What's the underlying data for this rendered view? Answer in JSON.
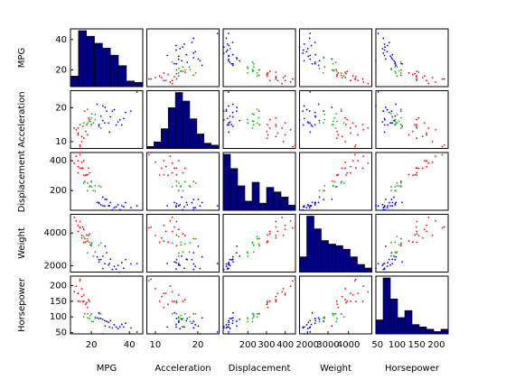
{
  "chart_data": {
    "type": "scatter-matrix",
    "variables": [
      "MPG",
      "Acceleration",
      "Displacement",
      "Weight",
      "Horsepower"
    ],
    "lims": [
      [
        9,
        47
      ],
      [
        8,
        25
      ],
      [
        68,
        455
      ],
      [
        1613,
        5140
      ],
      [
        46,
        230
      ]
    ],
    "xticks": [
      [
        20,
        40
      ],
      [
        10,
        20
      ],
      [
        200,
        300,
        400
      ],
      [
        2000,
        3000,
        4000
      ],
      [
        50,
        100,
        150,
        200
      ]
    ],
    "yticks": [
      [
        20,
        40
      ],
      [
        10,
        20
      ],
      [
        200,
        400
      ],
      [
        2000,
        4000
      ],
      [
        50,
        100,
        150,
        200
      ]
    ],
    "hist_color": "#000080",
    "histograms": [
      {
        "bins": [
          9,
          13.2,
          17.4,
          21.6,
          25.8,
          30,
          34.2,
          38.4,
          42.6,
          46.8
        ],
        "counts": [
          15,
          80,
          72,
          62,
          55,
          45,
          30,
          8,
          6
        ]
      },
      {
        "bins": [
          8,
          9.68,
          11.36,
          13.04,
          14.72,
          16.4,
          18.08,
          19.76,
          21.44,
          23.12,
          24.8
        ],
        "counts": [
          3,
          10,
          30,
          62,
          85,
          72,
          45,
          22,
          8,
          5
        ]
      },
      {
        "bins": [
          68,
          106.7,
          145.4,
          184.1,
          222.8,
          261.5,
          300.2,
          338.9,
          377.6,
          416.3,
          455
        ],
        "counts": [
          110,
          82,
          48,
          18,
          55,
          14,
          45,
          36,
          26,
          10
        ]
      },
      {
        "bins": [
          1613,
          1965.7,
          2318.4,
          2671.1,
          3023.8,
          3376.5,
          3729.2,
          4081.9,
          4434.6,
          4787.3,
          5140
        ],
        "counts": [
          30,
          110,
          85,
          62,
          55,
          52,
          45,
          30,
          15,
          8
        ]
      },
      {
        "bins": [
          46,
          64.4,
          82.8,
          101.2,
          119.6,
          138,
          156.4,
          174.8,
          193.2,
          211.6,
          230
        ],
        "counts": [
          30,
          120,
          75,
          35,
          50,
          20,
          15,
          10,
          5,
          10
        ]
      }
    ],
    "series": [
      {
        "color": "#ff0000",
        "points": [
          [
            18,
            12,
            307,
            3504,
            130
          ],
          [
            15,
            11.5,
            350,
            3693,
            165
          ],
          [
            16,
            11,
            304,
            3433,
            150
          ],
          [
            14,
            9,
            454,
            4354,
            220
          ],
          [
            14,
            8.5,
            440,
            4312,
            215
          ],
          [
            15,
            10,
            390,
            3850,
            190
          ],
          [
            13,
            12,
            400,
            4464,
            175
          ],
          [
            12,
            13.5,
            429,
            4732,
            198
          ],
          [
            14,
            15,
            350,
            4699,
            150
          ],
          [
            13,
            14,
            318,
            4098,
            150
          ],
          [
            16,
            15.5,
            400,
            4220,
            170
          ],
          [
            17,
            13,
            302,
            3449,
            140
          ],
          [
            11,
            14,
            383,
            4955,
            180
          ],
          [
            19,
            16.5,
            318,
            3940,
            150
          ],
          [
            15.5,
            14.5,
            351,
            4360,
            149
          ],
          [
            17.5,
            15,
            305,
            3880,
            145
          ],
          [
            20,
            15,
            262,
            3221,
            110
          ],
          [
            13,
            12.5,
            360,
            4100,
            175
          ],
          [
            18.5,
            17,
            350,
            3840,
            155
          ],
          [
            16.5,
            19,
            260,
            3660,
            110
          ]
        ]
      },
      {
        "color": "#00c000",
        "points": [
          [
            18,
            15.5,
            199,
            2774,
            97
          ],
          [
            21,
            15.5,
            200,
            2587,
            85
          ],
          [
            19,
            16,
            225,
            3439,
            95
          ],
          [
            16,
            15.5,
            250,
            3781,
            100
          ],
          [
            22,
            18,
            232,
            2835,
            100
          ],
          [
            20,
            17,
            258,
            3329,
            110
          ],
          [
            18,
            19.5,
            250,
            3645,
            110
          ],
          [
            19.4,
            16,
            231,
            3270,
            105
          ],
          [
            24,
            15,
            231,
            3245,
            110
          ],
          [
            20.2,
            18.2,
            225,
            3410,
            85
          ],
          [
            22,
            16.5,
            198,
            2833,
            95
          ],
          [
            25,
            14,
            225,
            3381,
            110
          ]
        ]
      },
      {
        "color": "#0000ff",
        "points": [
          [
            24,
            15,
            113,
            2372,
            95
          ],
          [
            27,
            15.5,
            97,
            2130,
            88
          ],
          [
            26,
            20.5,
            97,
            1835,
            46
          ],
          [
            25,
            17.5,
            104,
            2375,
            95
          ],
          [
            24,
            14.5,
            121,
            2234,
            113
          ],
          [
            28,
            19,
            140,
            2790,
            86
          ],
          [
            31,
            19,
            71,
            1773,
            65
          ],
          [
            35,
            16.4,
            72,
            1613,
            69
          ],
          [
            32,
            19.4,
            85,
            1965,
            75
          ],
          [
            29,
            15.5,
            98,
            2045,
            83
          ],
          [
            36,
            14.9,
            98,
            2188,
            76
          ],
          [
            44,
            24.6,
            97,
            2130,
            52
          ],
          [
            37,
            16.8,
            91,
            1845,
            68
          ],
          [
            34,
            15.8,
            105,
            2020,
            63
          ],
          [
            30,
            17.3,
            120,
            2395,
            88
          ],
          [
            27.2,
            20.1,
            141,
            3190,
            71
          ],
          [
            40.8,
            19,
            85,
            2110,
            65
          ],
          [
            33,
            14.9,
            91,
            1800,
            68
          ],
          [
            23,
            21,
            120,
            2542,
            97
          ],
          [
            38,
            18.6,
            119,
            2370,
            80
          ],
          [
            26,
            16.2,
            156,
            2585,
            92
          ],
          [
            29.5,
            12.8,
            98,
            2135,
            68
          ]
        ]
      }
    ]
  }
}
